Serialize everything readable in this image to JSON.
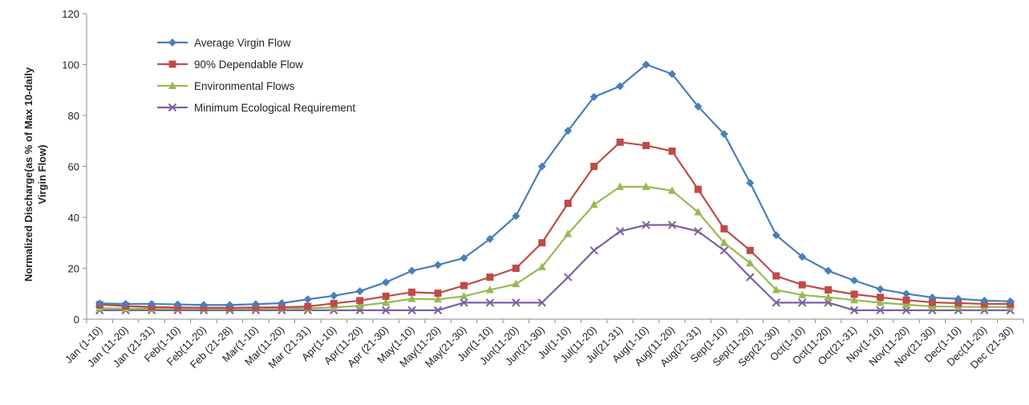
{
  "chart_data": {
    "type": "line",
    "title": "",
    "xlabel": "",
    "ylabel_line1": "Normalized Discharge(as % of Max 10-daily",
    "ylabel_line2": "Virgin Flow)",
    "ylim": [
      0,
      120
    ],
    "yticks": [
      0,
      20,
      40,
      60,
      80,
      100,
      120
    ],
    "grid": false,
    "legend_position": "top-left",
    "categories": [
      "Jan (1-10)",
      "Jan (11-20)",
      "Jan (21-31)",
      "Feb(1-10)",
      "Feb(11-20)",
      "Feb (21-28)",
      "Mar(1-10)",
      "Mar(11-20)",
      "Mar (21-31)",
      "Apr(1-10)",
      "Apr(11-20)",
      "Apr (21-30)",
      "May(1-10)",
      "May(11-20)",
      "May(21-30)",
      "Jun(1-10)",
      "Jun(11-20)",
      "Jun(21-30)",
      "Jul(1-10)",
      "Jul(11-20)",
      "Jul(21-31)",
      "Aug(1-10)",
      "Aug(11-20)",
      "Aug(21-31)",
      "Sep(1-10)",
      "Sep(11-20)",
      "Sep(21-30)",
      "Oct(1-10)",
      "Oct(11-20)",
      "Oct(21-31)",
      "Nov(1-10)",
      "Nov(11-20)",
      "Nov(21-30)",
      "Dec(1-10)",
      "Dec(11-20)",
      "Dec (21-30)"
    ],
    "series": [
      {
        "name": "Average Virgin Flow",
        "color": "#4a7ebb",
        "marker": "diamond",
        "values": [
          6.2,
          6.0,
          6.0,
          5.8,
          5.6,
          5.6,
          5.9,
          6.3,
          7.8,
          9.2,
          11.0,
          14.5,
          19.0,
          21.3,
          24.0,
          31.5,
          40.5,
          60.0,
          74.0,
          87.3,
          91.5,
          100.0,
          96.3,
          83.5,
          72.7,
          53.5,
          33.0,
          24.5,
          19.0,
          15.2,
          11.8,
          10.0,
          8.5,
          8.0,
          7.3,
          7.0
        ]
      },
      {
        "name": "90% Dependable Flow",
        "color": "#be4b48",
        "marker": "square",
        "values": [
          5.7,
          5.2,
          4.8,
          4.6,
          4.5,
          4.5,
          4.6,
          4.7,
          5.0,
          6.2,
          7.3,
          9.0,
          10.6,
          10.2,
          13.2,
          16.5,
          20.0,
          30.0,
          45.5,
          60.0,
          69.5,
          68.2,
          66.0,
          51.0,
          35.5,
          27.0,
          17.0,
          13.5,
          11.5,
          9.8,
          8.6,
          7.5,
          6.6,
          6.3,
          6.0,
          6.0
        ]
      },
      {
        "name": "Environmental Flows",
        "color": "#98b954",
        "marker": "triangle",
        "values": [
          4.3,
          4.2,
          4.2,
          4.2,
          4.1,
          4.1,
          4.2,
          4.2,
          4.3,
          4.6,
          5.3,
          6.5,
          8.0,
          7.8,
          9.0,
          11.5,
          13.8,
          20.5,
          33.5,
          45.0,
          52.0,
          52.0,
          50.5,
          42.0,
          30.0,
          22.0,
          11.5,
          9.5,
          8.6,
          7.5,
          6.5,
          5.7,
          5.0,
          4.9,
          4.8,
          4.8
        ]
      },
      {
        "name": "Minimum Ecological Requirement",
        "color": "#7d60a0",
        "marker": "x",
        "values": [
          3.5,
          3.5,
          3.5,
          3.5,
          3.5,
          3.5,
          3.5,
          3.5,
          3.5,
          3.5,
          3.5,
          3.5,
          3.5,
          3.5,
          6.5,
          6.5,
          6.5,
          6.5,
          16.5,
          27.0,
          34.5,
          37.0,
          37.0,
          34.5,
          27.0,
          16.5,
          6.5,
          6.5,
          6.5,
          3.5,
          3.5,
          3.5,
          3.5,
          3.5,
          3.5,
          3.5
        ]
      }
    ]
  }
}
